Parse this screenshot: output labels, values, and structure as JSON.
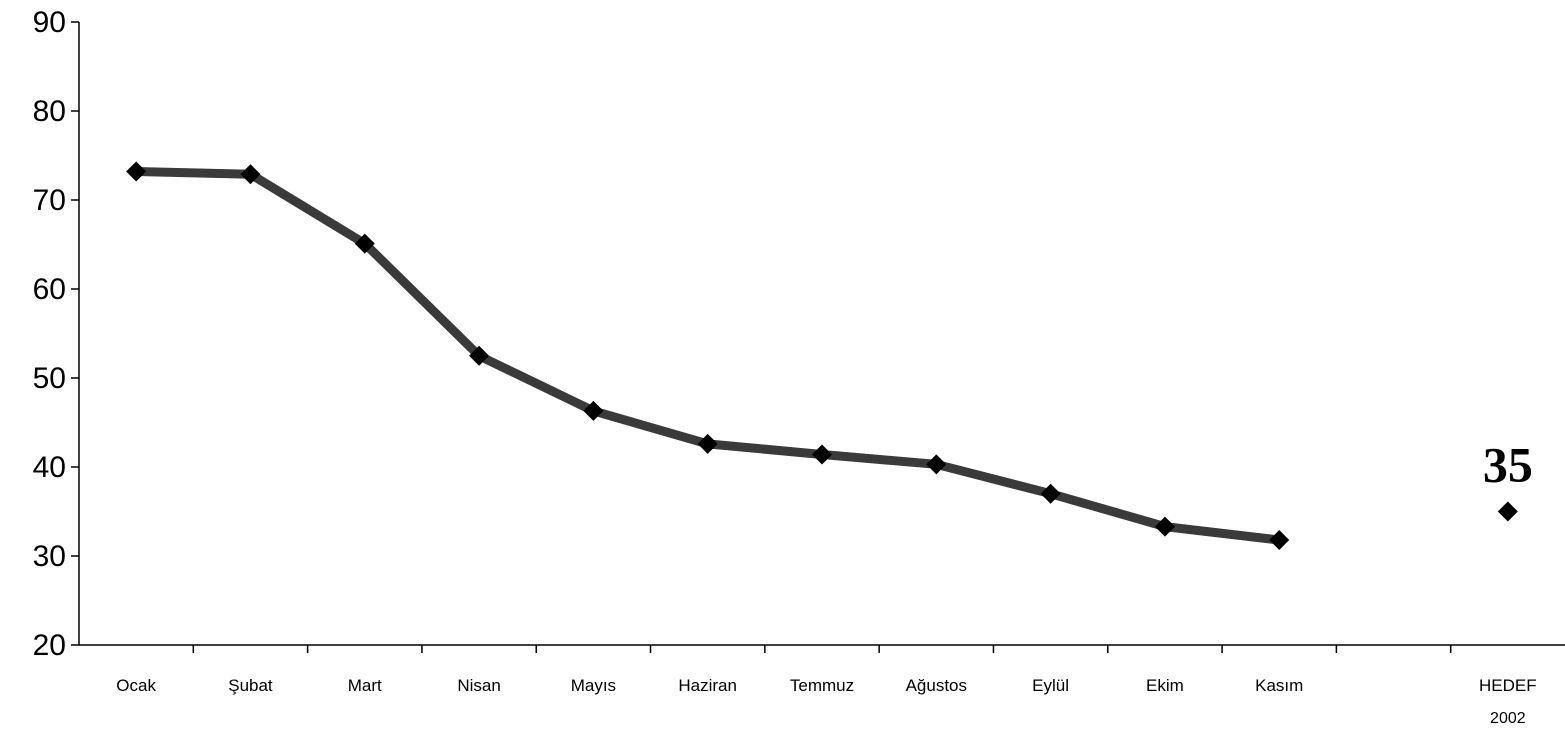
{
  "chart_data": {
    "type": "line",
    "title": "",
    "xlabel": "",
    "ylabel": "",
    "ylim": [
      20,
      90
    ],
    "yticks": [
      "90",
      "80",
      "70",
      "60",
      "50",
      "40",
      "30",
      "20"
    ],
    "grid": false,
    "categories": [
      "Ocak",
      "Şubat",
      "Mart",
      "Nisan",
      "Mayıs",
      "Haziran",
      "Temmuz",
      "Ağustos",
      "Eylül",
      "Ekim",
      "Kasım",
      "",
      "HEDEF"
    ],
    "category_sublabels": {
      "HEDEF": "2002"
    },
    "series": [
      {
        "values": [
          73.2,
          72.9,
          65.1,
          52.5,
          46.3,
          42.6,
          41.4,
          40.3,
          37.0,
          33.3,
          31.8,
          null,
          null
        ]
      }
    ],
    "target": {
      "category": "HEDEF",
      "value": 35,
      "label": "35"
    },
    "colors": {
      "line": "#3a3a3a",
      "marker": "#000000",
      "axis": "#000000"
    }
  }
}
